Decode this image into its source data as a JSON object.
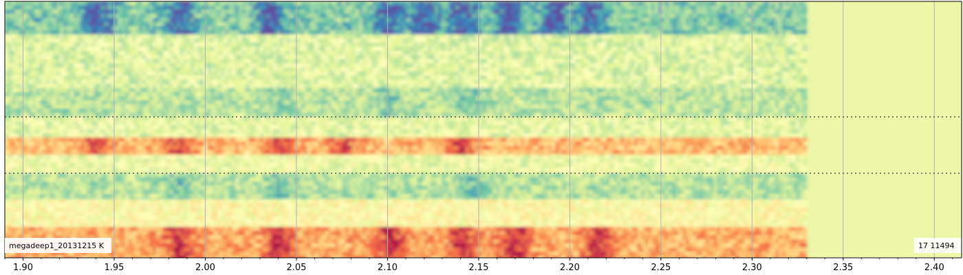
{
  "chart_data": {
    "type": "heatmap",
    "title": "",
    "xlabel": "",
    "ylabel": "",
    "xlim": [
      1.89,
      2.415
    ],
    "data_extent_x": [
      1.89,
      2.328
    ],
    "x_ticks": [
      "1.90",
      "1.95",
      "2.00",
      "2.05",
      "2.10",
      "2.15",
      "2.20",
      "2.25",
      "2.30",
      "2.35",
      "2.40"
    ],
    "x_tick_values": [
      1.9,
      1.95,
      2.0,
      2.05,
      2.1,
      2.15,
      2.2,
      2.25,
      2.3,
      2.35,
      2.4
    ],
    "minor_tick_step": 0.01,
    "grid": "vertical",
    "horizontal_dotted_lines": 2,
    "colormap": "Spectral_r",
    "background_color": "#eef7a9",
    "rows": [
      {
        "name": "top",
        "pattern": "strong-low",
        "peaks_x": [
          1.94,
          1.985,
          2.035,
          2.1,
          2.12,
          2.14,
          2.165,
          2.19,
          2.21
        ]
      },
      {
        "name": "upper-middle",
        "pattern": "mild-low",
        "peaks_x": [
          2.04,
          2.1,
          2.145
        ]
      },
      {
        "name": "center",
        "pattern": "high",
        "peaks_x": [
          1.94,
          1.985,
          2.04,
          2.075,
          2.14
        ]
      },
      {
        "name": "lower-middle",
        "pattern": "mild-low",
        "peaks_x": [
          1.985,
          2.04,
          2.145
        ]
      },
      {
        "name": "bottom",
        "pattern": "strong-high",
        "peaks_x": [
          1.985,
          2.04,
          2.1,
          2.14,
          2.17,
          2.215
        ]
      }
    ]
  },
  "labels": {
    "left_badge": "megadeep1_20131215  K",
    "right_badge": "17  11494"
  }
}
